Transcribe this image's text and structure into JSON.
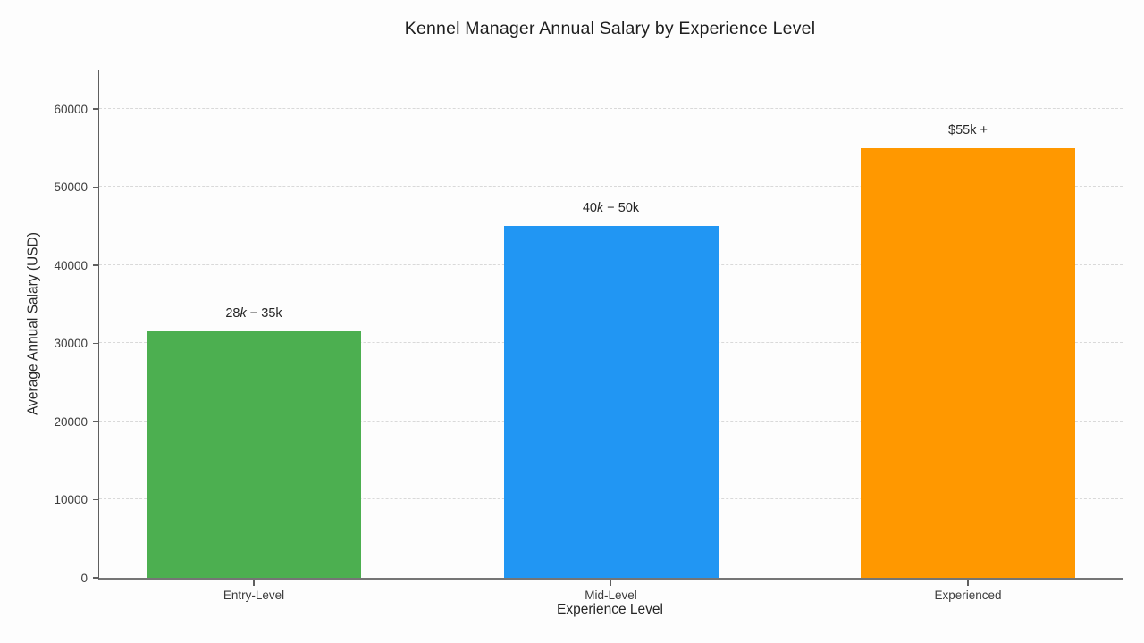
{
  "page": {
    "background": "#fdfdfd"
  },
  "chart_data": {
    "type": "bar",
    "title": "Kennel Manager Annual Salary by Experience Level",
    "xlabel": "Experience Level",
    "ylabel": "Average Annual Salary (USD)",
    "categories": [
      "Entry-Level",
      "Mid-Level",
      "Experienced"
    ],
    "values": [
      31500,
      45000,
      55000
    ],
    "bar_labels": [
      "28k − 35k",
      "40k − 50k",
      "$55k +"
    ],
    "colors": [
      "#4caf50",
      "#2196f3",
      "#ff9800"
    ],
    "yticks": [
      0,
      10000,
      20000,
      30000,
      40000,
      50000,
      60000
    ],
    "ylim": [
      0,
      65000
    ],
    "grid": "horizontal dashed gridlines at y ticks",
    "legend": "none"
  }
}
